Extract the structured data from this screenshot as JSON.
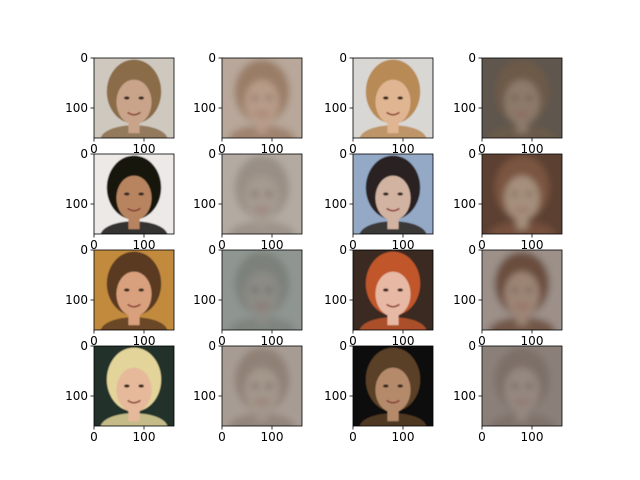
{
  "figure": {
    "background": "#ffffff",
    "description_ignored": ""
  },
  "chart_data": {
    "type": "image-grid",
    "title": "",
    "rows": 4,
    "cols": 4,
    "x_ticks": [
      0,
      100
    ],
    "y_ticks": [
      0,
      100
    ],
    "x_tick_labels": [
      "0",
      "100"
    ],
    "y_tick_labels": [
      "0",
      "100"
    ],
    "image_extent": [
      0,
      160
    ],
    "panels": [
      {
        "row": 0,
        "col": 0,
        "kind": "photo",
        "icon": "face-photo",
        "bg": "#cfc8bf",
        "hair": "#8a6c4a",
        "face": "#c9a48a"
      },
      {
        "row": 0,
        "col": 1,
        "kind": "reconstruction",
        "icon": "blurry-face",
        "bg": "#b8a79a",
        "hair": "#9a7d66",
        "face": "#b79b88"
      },
      {
        "row": 0,
        "col": 2,
        "kind": "photo",
        "icon": "face-photo",
        "bg": "#d9d7d3",
        "hair": "#b88a55",
        "face": "#e0b592"
      },
      {
        "row": 0,
        "col": 3,
        "kind": "reconstruction",
        "icon": "blurry-face",
        "bg": "#5f574e",
        "hair": "#6d5a4a",
        "face": "#8d7a6a"
      },
      {
        "row": 1,
        "col": 0,
        "kind": "photo",
        "icon": "face-photo",
        "bg": "#ece9e6",
        "hair": "#161311",
        "face": "#b88460"
      },
      {
        "row": 1,
        "col": 1,
        "kind": "reconstruction",
        "icon": "blurry-face",
        "bg": "#b3aaa2",
        "hair": "#998f86",
        "face": "#a59a90"
      },
      {
        "row": 1,
        "col": 2,
        "kind": "photo",
        "icon": "face-photo",
        "bg": "#93a9c6",
        "hair": "#2a2420",
        "face": "#d2b3a1"
      },
      {
        "row": 1,
        "col": 3,
        "kind": "reconstruction",
        "icon": "blurry-face",
        "bg": "#5c4032",
        "hair": "#7a5440",
        "face": "#a6907d"
      },
      {
        "row": 2,
        "col": 0,
        "kind": "photo",
        "icon": "face-photo",
        "bg": "#c28a3c",
        "hair": "#5a3a22",
        "face": "#d9a07d"
      },
      {
        "row": 2,
        "col": 1,
        "kind": "reconstruction",
        "icon": "blurry-face",
        "bg": "#8f9590",
        "hair": "#7d817c",
        "face": "#8c8b85"
      },
      {
        "row": 2,
        "col": 2,
        "kind": "photo",
        "icon": "face-photo",
        "bg": "#3a2a22",
        "hair": "#c0572b",
        "face": "#e7b8a3"
      },
      {
        "row": 2,
        "col": 3,
        "kind": "reconstruction",
        "icon": "blurry-face",
        "bg": "#9c9089",
        "hair": "#6b4d3c",
        "face": "#9d8576"
      },
      {
        "row": 3,
        "col": 0,
        "kind": "photo",
        "icon": "face-photo",
        "bg": "#20322a",
        "hair": "#e3d49a",
        "face": "#e6b99b"
      },
      {
        "row": 3,
        "col": 1,
        "kind": "reconstruction",
        "icon": "blurry-face",
        "bg": "#a79c94",
        "hair": "#8f8176",
        "face": "#a3968b"
      },
      {
        "row": 3,
        "col": 2,
        "kind": "photo",
        "icon": "face-photo",
        "bg": "#0e0c0a",
        "hair": "#5a4128",
        "face": "#b48a6b"
      },
      {
        "row": 3,
        "col": 3,
        "kind": "reconstruction",
        "icon": "blurry-face",
        "bg": "#8a8079",
        "hair": "#7d7068",
        "face": "#948880"
      }
    ]
  }
}
